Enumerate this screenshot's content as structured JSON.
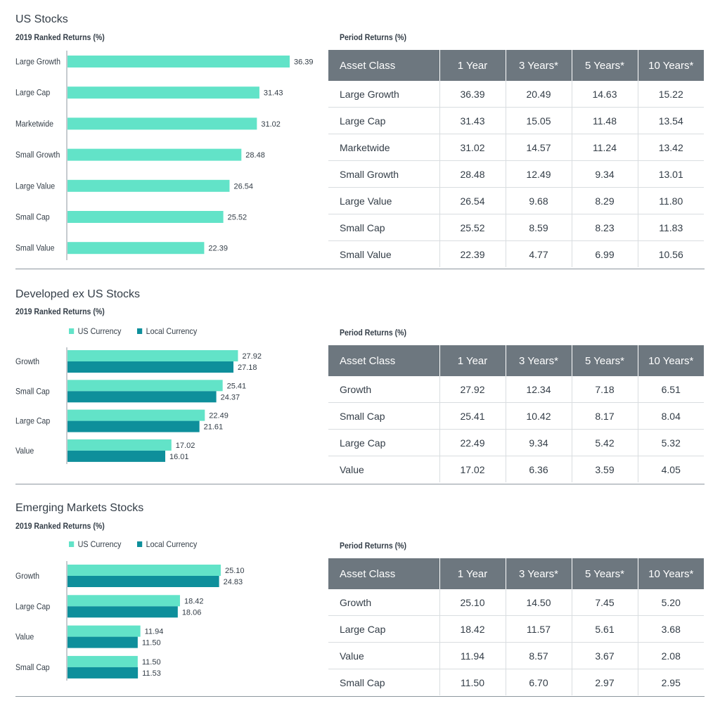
{
  "colors": {
    "us_currency": "#62e3c8",
    "local_currency": "#0e8f9b",
    "table_header": "#6d777f"
  },
  "table_headers": [
    "Asset Class",
    "1 Year",
    "3 Years*",
    "5 Years*",
    "10 Years*"
  ],
  "sections": [
    {
      "title": "US Stocks",
      "chart_subtitle": "2019 Ranked Returns (%)",
      "table_subtitle": "Period Returns (%)",
      "legend": [],
      "rows": [
        [
          "Large Growth",
          "36.39",
          "20.49",
          "14.63",
          "15.22"
        ],
        [
          "Large Cap",
          "31.43",
          "15.05",
          "11.48",
          "13.54"
        ],
        [
          "Marketwide",
          "31.02",
          "14.57",
          "11.24",
          "13.42"
        ],
        [
          "Small Growth",
          "28.48",
          "12.49",
          "9.34",
          "13.01"
        ],
        [
          "Large Value",
          "26.54",
          "9.68",
          "8.29",
          "11.80"
        ],
        [
          "Small Cap",
          "25.52",
          "8.59",
          "8.23",
          "11.83"
        ],
        [
          "Small Value",
          "22.39",
          "4.77",
          "6.99",
          "10.56"
        ]
      ]
    },
    {
      "title": "Developed ex US Stocks",
      "chart_subtitle": "2019 Ranked Returns (%)",
      "table_subtitle": "Period Returns (%)",
      "legend": [
        "US Currency",
        "Local Currency"
      ],
      "rows": [
        [
          "Growth",
          "27.92",
          "12.34",
          "7.18",
          "6.51"
        ],
        [
          "Small Cap",
          "25.41",
          "10.42",
          "8.17",
          "8.04"
        ],
        [
          "Large Cap",
          "22.49",
          "9.34",
          "5.42",
          "5.32"
        ],
        [
          "Value",
          "17.02",
          "6.36",
          "3.59",
          "4.05"
        ]
      ]
    },
    {
      "title": "Emerging Markets Stocks",
      "chart_subtitle": "2019 Ranked Returns (%)",
      "table_subtitle": "Period Returns (%)",
      "legend": [
        "US Currency",
        "Local Currency"
      ],
      "rows": [
        [
          "Growth",
          "25.10",
          "14.50",
          "7.45",
          "5.20"
        ],
        [
          "Large Cap",
          "18.42",
          "11.57",
          "5.61",
          "3.68"
        ],
        [
          "Value",
          "11.94",
          "8.57",
          "3.67",
          "2.08"
        ],
        [
          "Small Cap",
          "11.50",
          "6.70",
          "2.97",
          "2.95"
        ]
      ]
    }
  ],
  "chart_data": [
    {
      "type": "bar",
      "orientation": "horizontal",
      "title": "US Stocks",
      "subtitle": "2019 Ranked Returns (%)",
      "categories": [
        "Large Growth",
        "Large Cap",
        "Marketwide",
        "Small Growth",
        "Large Value",
        "Small Cap",
        "Small Value"
      ],
      "series": [
        {
          "values": [
            36.39,
            31.43,
            31.02,
            28.48,
            26.54,
            25.52,
            22.39
          ]
        }
      ],
      "xlim": [
        0,
        36.39
      ],
      "grid": false
    },
    {
      "type": "bar",
      "orientation": "horizontal",
      "title": "Developed ex US Stocks",
      "subtitle": "2019 Ranked Returns (%)",
      "categories": [
        "Growth",
        "Small Cap",
        "Large Cap",
        "Value"
      ],
      "series": [
        {
          "name": "US Currency",
          "values": [
            27.92,
            25.41,
            22.49,
            17.02
          ]
        },
        {
          "name": "Local Currency",
          "values": [
            27.18,
            24.37,
            21.61,
            16.01
          ]
        }
      ],
      "xlim": [
        0,
        36.39
      ],
      "legend": "top-left",
      "grid": false
    },
    {
      "type": "bar",
      "orientation": "horizontal",
      "title": "Emerging Markets Stocks",
      "subtitle": "2019 Ranked Returns (%)",
      "categories": [
        "Growth",
        "Large Cap",
        "Value",
        "Small Cap"
      ],
      "series": [
        {
          "name": "US Currency",
          "values": [
            25.1,
            18.42,
            11.94,
            11.5
          ]
        },
        {
          "name": "Local Currency",
          "values": [
            24.83,
            18.06,
            11.5,
            11.53
          ]
        }
      ],
      "xlim": [
        0,
        36.39
      ],
      "legend": "top-left",
      "grid": false
    }
  ]
}
